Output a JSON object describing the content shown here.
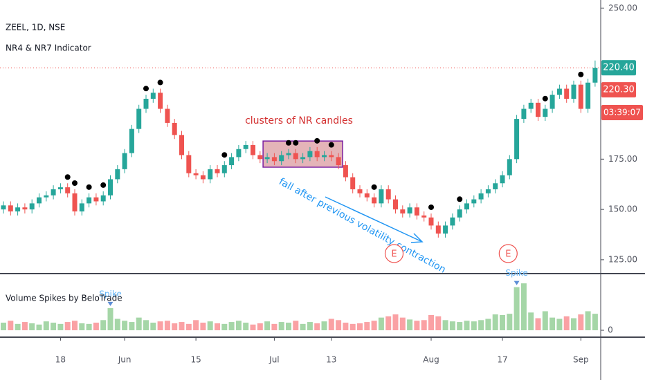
{
  "chart_data": [
    {
      "type": "candlestick",
      "symbol": "ZEEL, 1D, NSE",
      "indicator": "NR4 & NR7 Indicator",
      "categories": [
        null,
        null,
        null,
        null,
        null,
        null,
        null,
        null,
        "18",
        null,
        null,
        null,
        null,
        null,
        null,
        null,
        null,
        "Jun",
        null,
        null,
        null,
        null,
        null,
        null,
        null,
        null,
        null,
        "15",
        null,
        null,
        null,
        null,
        null,
        null,
        null,
        null,
        null,
        null,
        "Jul",
        null,
        null,
        null,
        null,
        null,
        null,
        null,
        "13",
        null,
        null,
        null,
        null,
        null,
        null,
        null,
        null,
        null,
        null,
        null,
        null,
        null,
        "Aug",
        null,
        null,
        null,
        null,
        null,
        null,
        null,
        null,
        null,
        "17",
        null,
        null,
        null,
        null,
        null,
        null,
        null,
        null,
        null,
        null,
        "Sep",
        null,
        null
      ],
      "open": [
        150,
        152,
        149,
        151,
        150,
        153,
        156,
        157,
        160,
        161,
        158,
        149,
        153,
        156,
        154,
        157,
        165,
        170,
        178,
        190,
        200,
        205,
        208,
        200,
        193,
        187,
        177,
        168,
        167,
        165,
        170,
        168,
        172,
        176,
        180,
        182,
        177,
        175,
        176,
        174,
        177,
        178,
        175,
        176,
        179,
        176,
        177,
        176,
        172,
        166,
        160,
        158,
        156,
        153,
        160,
        155,
        150,
        148,
        151,
        147,
        146,
        142,
        138,
        142,
        146,
        150,
        153,
        155,
        158,
        160,
        163,
        167,
        175,
        195,
        200,
        203,
        196,
        200,
        207,
        210,
        205,
        212,
        200,
        213
      ],
      "high": [
        154,
        154,
        153,
        153,
        155,
        158,
        159,
        162,
        163,
        163,
        160,
        155,
        158,
        158,
        159,
        167,
        172,
        180,
        192,
        202,
        207,
        210,
        210,
        202,
        195,
        189,
        179,
        170,
        169,
        172,
        172,
        174,
        178,
        182,
        184,
        184,
        179,
        178,
        178,
        179,
        180,
        180,
        178,
        181,
        181,
        179,
        179,
        178,
        174,
        168,
        162,
        160,
        158,
        162,
        162,
        157,
        152,
        153,
        153,
        149,
        148,
        144,
        144,
        148,
        152,
        155,
        157,
        160,
        162,
        165,
        169,
        177,
        197,
        202,
        205,
        205,
        202,
        209,
        212,
        212,
        214,
        214,
        215,
        224
      ],
      "low": [
        148,
        147,
        147,
        148,
        148,
        151,
        154,
        155,
        158,
        156,
        147,
        147,
        151,
        152,
        152,
        155,
        163,
        168,
        176,
        188,
        198,
        203,
        198,
        191,
        185,
        175,
        166,
        165,
        163,
        163,
        166,
        166,
        170,
        174,
        178,
        175,
        173,
        173,
        172,
        172,
        175,
        173,
        173,
        174,
        174,
        174,
        174,
        170,
        164,
        158,
        156,
        154,
        151,
        151,
        153,
        148,
        146,
        146,
        145,
        144,
        140,
        136,
        136,
        140,
        144,
        148,
        151,
        153,
        156,
        158,
        161,
        165,
        173,
        193,
        198,
        194,
        194,
        198,
        205,
        203,
        203,
        198,
        198,
        211
      ],
      "close": [
        152,
        149,
        151,
        150,
        153,
        156,
        157,
        160,
        161,
        158,
        149,
        153,
        156,
        154,
        157,
        165,
        170,
        178,
        190,
        200,
        205,
        208,
        200,
        193,
        187,
        177,
        168,
        167,
        165,
        170,
        168,
        172,
        176,
        180,
        182,
        177,
        175,
        176,
        174,
        177,
        178,
        175,
        176,
        179,
        176,
        177,
        176,
        172,
        166,
        160,
        158,
        156,
        153,
        160,
        155,
        150,
        148,
        151,
        147,
        146,
        142,
        138,
        142,
        146,
        150,
        153,
        155,
        158,
        160,
        163,
        167,
        175,
        195,
        200,
        203,
        196,
        200,
        207,
        210,
        205,
        212,
        200,
        213,
        220.4
      ],
      "up_color": "#26a69a",
      "down_color": "#ef5350",
      "nr_marks": [
        9,
        10,
        12,
        14,
        20,
        22,
        31,
        40,
        41,
        44,
        46,
        52,
        60,
        64,
        76,
        81
      ],
      "ylim": [
        118.1,
        254.1
      ],
      "yticks": [
        {
          "value": 125,
          "label": "125.00"
        },
        {
          "value": 150,
          "label": "150.00"
        },
        {
          "value": 175,
          "label": "175.00"
        },
        {
          "value": 250,
          "label": "250.00"
        }
      ],
      "last_price": {
        "value": 220.4,
        "label": "220.40"
      },
      "prev_price": {
        "value": 220.3,
        "label": "220.30"
      },
      "countdown": "03:39:07",
      "annotations": [
        {
          "label": "clusters of NR candles",
          "from": 37,
          "to": 47,
          "top": 184,
          "bottom": 171
        },
        {
          "label": "fall after previous volatility contraction"
        }
      ],
      "earnings": [
        {
          "index": 55,
          "label": "E"
        },
        {
          "index": 71,
          "label": "E"
        }
      ]
    },
    {
      "type": "bar",
      "title": "Volume Spikes by BeloTrade",
      "values": [
        1.2,
        1.5,
        1.0,
        1.3,
        1.1,
        0.9,
        1.4,
        1.2,
        1.0,
        1.3,
        1.5,
        1.1,
        1.0,
        1.2,
        1.6,
        3.5,
        1.8,
        1.5,
        1.3,
        2.0,
        1.6,
        1.2,
        1.4,
        1.5,
        1.1,
        1.3,
        1.0,
        1.6,
        1.2,
        1.4,
        1.1,
        1.0,
        1.3,
        1.5,
        1.2,
        0.9,
        1.1,
        1.4,
        1.0,
        1.3,
        1.2,
        1.5,
        1.0,
        1.3,
        1.1,
        1.4,
        1.8,
        1.6,
        1.2,
        1.0,
        1.1,
        1.3,
        1.5,
        2.0,
        2.2,
        2.5,
        2.0,
        1.7,
        1.5,
        1.6,
        2.4,
        2.2,
        1.6,
        1.4,
        1.3,
        1.5,
        1.4,
        1.6,
        1.8,
        2.5,
        2.4,
        2.6,
        6.8,
        7.4,
        2.8,
        1.9,
        3.0,
        2.0,
        1.8,
        2.2,
        1.9,
        2.5,
        3.0,
        2.6
      ],
      "up_color": "#a5d6a7",
      "down_color": "#faa1a4",
      "ylim": [
        0,
        8.5
      ],
      "yticks": [
        0
      ],
      "spikes": [
        {
          "index": 15,
          "label": "Spike"
        },
        {
          "index": 72,
          "label": "Spike"
        }
      ]
    }
  ]
}
